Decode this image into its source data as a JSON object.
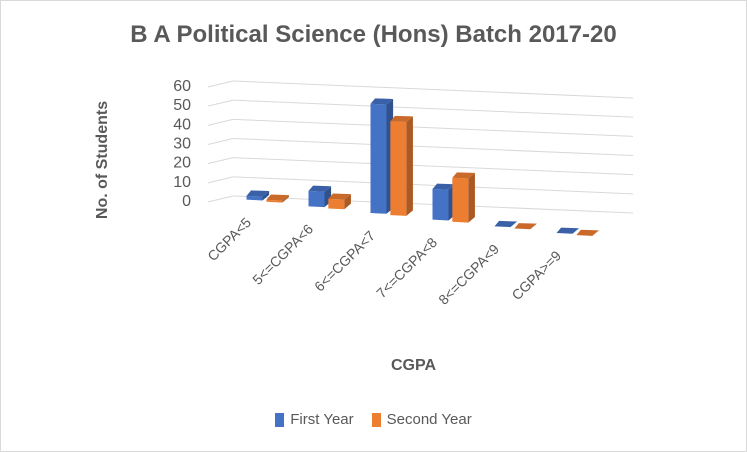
{
  "chart_data": {
    "type": "bar",
    "title": "B A Political Science (Hons)  Batch 2017-20",
    "xlabel": "CGPA",
    "ylabel": "No. of Students",
    "categories": [
      "CGPA<5",
      "5<=CGPA<6",
      "6<=CGPA<7",
      "7<=CGPA<8",
      "8<=CGPA<9",
      "CGPA>=9"
    ],
    "series": [
      {
        "name": "First Year",
        "values": [
          2,
          8,
          57,
          16,
          0,
          0
        ],
        "color": "#4472C4"
      },
      {
        "name": "Second Year",
        "values": [
          1,
          5,
          49,
          23,
          0,
          0
        ],
        "color": "#ED7D31"
      }
    ],
    "ylim": [
      0,
      60
    ],
    "yticks": [
      0,
      10,
      20,
      30,
      40,
      50,
      60
    ],
    "grid": true,
    "legend_position": "bottom",
    "style": "3d-column"
  }
}
